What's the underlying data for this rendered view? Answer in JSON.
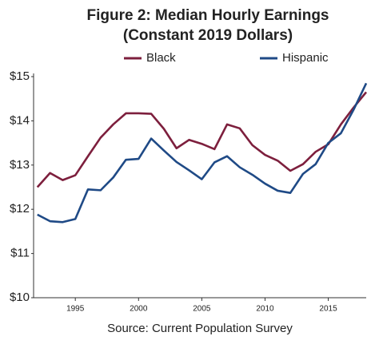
{
  "chart_data": {
    "type": "line",
    "title": "Figure 2: Median Hourly Earnings",
    "subtitle": "(Constant 2019 Dollars)",
    "source": "Source: Current Population Survey",
    "x": [
      1992,
      1993,
      1994,
      1995,
      1996,
      1997,
      1998,
      1999,
      2000,
      2001,
      2002,
      2003,
      2004,
      2005,
      2006,
      2007,
      2008,
      2009,
      2010,
      2011,
      2012,
      2013,
      2014,
      2015,
      2016,
      2017,
      2018
    ],
    "series": [
      {
        "name": "Black",
        "color": "#7d1f3d",
        "values": [
          12.5,
          12.82,
          12.66,
          12.77,
          13.2,
          13.62,
          13.92,
          14.17,
          14.17,
          14.16,
          13.82,
          13.38,
          13.57,
          13.48,
          13.36,
          13.92,
          13.83,
          13.45,
          13.23,
          13.1,
          12.87,
          13.02,
          13.3,
          13.47,
          13.92,
          14.3,
          14.65
        ]
      },
      {
        "name": "Hispanic",
        "color": "#1f4a86",
        "values": [
          11.88,
          11.73,
          11.71,
          11.78,
          12.45,
          12.43,
          12.72,
          13.12,
          13.14,
          13.6,
          13.33,
          13.07,
          12.88,
          12.68,
          13.06,
          13.2,
          12.95,
          12.78,
          12.58,
          12.42,
          12.37,
          12.8,
          13.02,
          13.5,
          13.72,
          14.25,
          14.85
        ]
      }
    ],
    "xlim": [
      1991.7,
      2018
    ],
    "xticks": [
      1995,
      2000,
      2005,
      2010,
      2015
    ],
    "ylim": [
      10,
      15
    ],
    "yticks": [
      {
        "value": 10,
        "label": "$10"
      },
      {
        "value": 11,
        "label": "$11"
      },
      {
        "value": 12,
        "label": "$12"
      },
      {
        "value": 13,
        "label": "$13"
      },
      {
        "value": 14,
        "label": "$14"
      },
      {
        "value": 15,
        "label": "$15"
      }
    ],
    "grid": false,
    "legend": "top"
  }
}
